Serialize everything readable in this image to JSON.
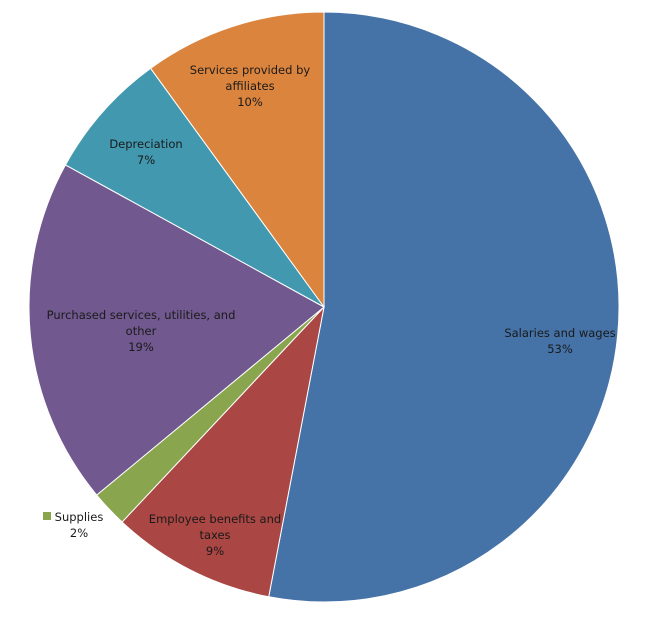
{
  "chart_data": {
    "type": "pie",
    "categories": [
      "Salaries and wages",
      "Employee benefits and taxes",
      "Supplies",
      "Purchased services, utilities, and other",
      "Depreciation",
      "Services provided by affiliates"
    ],
    "values": [
      53,
      9,
      2,
      19,
      7,
      10
    ],
    "value_labels": [
      "53%",
      "9%",
      "2%",
      "19%",
      "7%",
      "10%"
    ],
    "colors": [
      "#4572a7",
      "#aa4643",
      "#89a54e",
      "#71588f",
      "#4198af",
      "#db843d"
    ]
  }
}
